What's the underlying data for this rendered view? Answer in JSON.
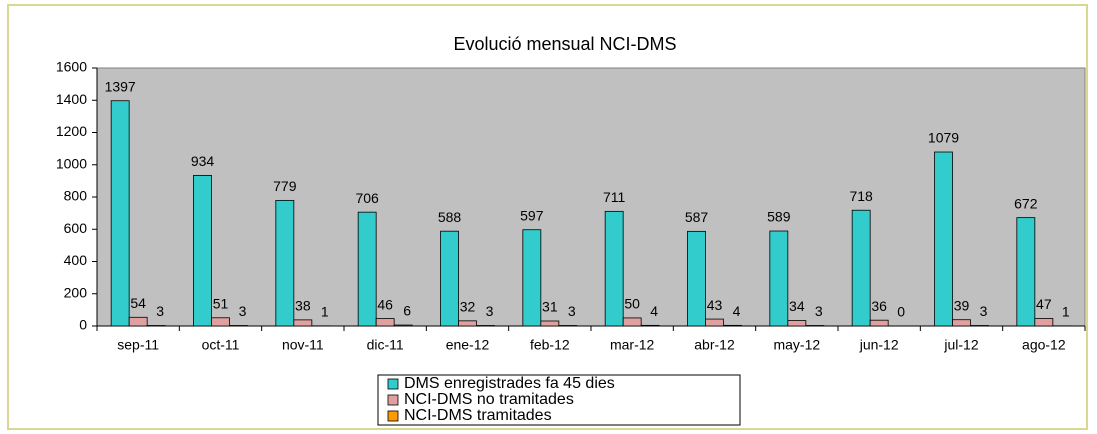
{
  "chart_data": {
    "type": "bar",
    "title": "Evolució mensual NCI-DMS",
    "categories": [
      "sep-11",
      "oct-11",
      "nov-11",
      "dic-11",
      "ene-12",
      "feb-12",
      "mar-12",
      "abr-12",
      "may-12",
      "jun-12",
      "jul-12",
      "ago-12"
    ],
    "series": [
      {
        "name": "DMS enregistrades fa 45 dies",
        "color": "#33CCCC",
        "values": [
          1397,
          934,
          779,
          706,
          588,
          597,
          711,
          587,
          589,
          718,
          1079,
          672
        ]
      },
      {
        "name": "NCI-DMS no tramitades",
        "color": "#E0A0A0",
        "values": [
          54,
          51,
          38,
          46,
          32,
          31,
          50,
          43,
          34,
          36,
          39,
          47
        ]
      },
      {
        "name": "NCI-DMS tramitades",
        "color": "#FF9900",
        "values": [
          3,
          3,
          1,
          6,
          3,
          3,
          4,
          4,
          3,
          0,
          3,
          1
        ]
      }
    ],
    "ylim": [
      0,
      1600
    ],
    "yticks": [
      0,
      200,
      400,
      600,
      800,
      1000,
      1200,
      1400,
      1600
    ],
    "grid": false,
    "plot_background": "#C0C0C0",
    "legend": "bottom"
  }
}
